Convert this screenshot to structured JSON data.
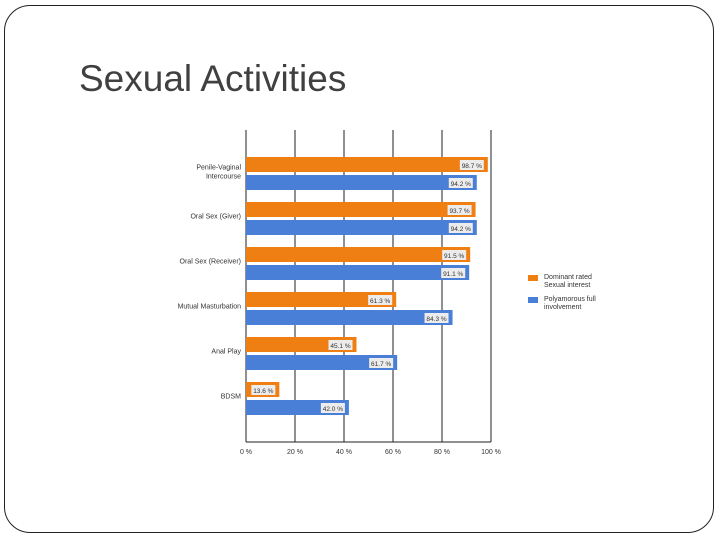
{
  "slide": {
    "title": "Sexual Activities"
  },
  "chart_data": {
    "type": "bar",
    "orientation": "horizontal",
    "categories": [
      "Penile-Vaginal Intercourse",
      "Oral Sex (Giver)",
      "Oral Sex (Receiver)",
      "Mutual Masturbation",
      "Anal Play",
      "BDSM"
    ],
    "series": [
      {
        "name": "Dominant rated Sexual interest",
        "color": "#f07f13",
        "values": [
          98.7,
          93.7,
          91.5,
          61.3,
          45.1,
          13.6
        ],
        "labels": [
          "98.7 %",
          "93.7 %",
          "91.5 %",
          "61.3 %",
          "45.1 %",
          "13.6 %"
        ]
      },
      {
        "name": "Polyamorous full involvement",
        "color": "#4a7fd8",
        "values": [
          94.2,
          94.2,
          91.1,
          84.3,
          61.7,
          42.0
        ],
        "labels": [
          "94.2 %",
          "94.2 %",
          "91.1 %",
          "84.3 %",
          "61.7 %",
          "42.0 %"
        ]
      }
    ],
    "xlim": [
      0,
      100
    ],
    "xticks": [
      "0 %",
      "20 %",
      "40 %",
      "60 %",
      "80 %",
      "100 %"
    ],
    "grid": true,
    "legend_position": "right"
  }
}
